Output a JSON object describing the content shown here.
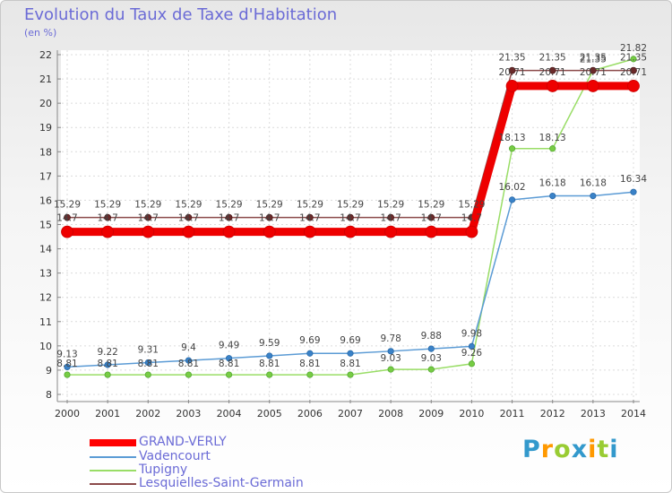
{
  "title": "Evolution du Taux de Taxe d'Habitation",
  "unit_label": "(en %)",
  "brand": "Proxiti",
  "colors": {
    "title": "#6b6bd6",
    "grand_verly": "#ff0000",
    "vadencourt": "#5b9bd5",
    "tupigny": "#99dd66",
    "lesquielles": "#8b4a4a"
  },
  "chart_data": {
    "type": "line",
    "title": "Evolution du Taux de Taxe d'Habitation",
    "ylabel": "(en %)",
    "xlabel": "",
    "x": [
      "2000",
      "2001",
      "2002",
      "2003",
      "2004",
      "2005",
      "2006",
      "2007",
      "2008",
      "2009",
      "2010",
      "2011",
      "2012",
      "2013",
      "2014"
    ],
    "ylim": [
      8,
      22
    ],
    "yticks": [
      "8",
      "9",
      "10",
      "11",
      "12",
      "13",
      "14",
      "15",
      "16",
      "17",
      "18",
      "19",
      "20",
      "21",
      "22"
    ],
    "grid": true,
    "legend_position": "bottom-left",
    "series": [
      {
        "name": "GRAND-VERLY",
        "color": "#ff0000",
        "values": [
          14.7,
          14.7,
          14.7,
          14.7,
          14.7,
          14.7,
          14.7,
          14.7,
          14.7,
          14.7,
          14.7,
          20.71,
          20.71,
          20.71,
          20.71
        ],
        "labels": [
          "14.7",
          "14.7",
          "14.7",
          "14.7",
          "14.7",
          "14.7",
          "14.7",
          "14.7",
          "14.7",
          "14.7",
          "14.7",
          "20.71",
          "20.71",
          "20.71",
          "20.71"
        ]
      },
      {
        "name": "Vadencourt",
        "color": "#5b9bd5",
        "values": [
          9.13,
          9.22,
          9.31,
          9.4,
          9.49,
          9.59,
          9.69,
          9.69,
          9.78,
          9.88,
          9.98,
          16.02,
          16.18,
          16.18,
          16.34
        ],
        "labels": [
          "9.13",
          "9.22",
          "9.31",
          "9.4",
          "9.49",
          "9.59",
          "9.69",
          "9.69",
          "9.78",
          "9.88",
          "9.98",
          "16.02",
          "16.18",
          "16.18",
          "16.34"
        ]
      },
      {
        "name": "Tupigny",
        "color": "#99dd66",
        "values": [
          8.81,
          8.81,
          8.81,
          8.81,
          8.81,
          8.81,
          8.81,
          8.81,
          9.03,
          9.03,
          9.26,
          18.13,
          18.13,
          21.35,
          21.82
        ],
        "labels": [
          "8.81",
          "8.81",
          "8.81",
          "8.81",
          "8.81",
          "8.81",
          "8.81",
          "8.81",
          "9.03",
          "9.03",
          "9.26",
          "18.13",
          "18.13",
          "21.35",
          "21.82"
        ]
      },
      {
        "name": "Lesquielles-Saint-Germain",
        "color": "#8b4a4a",
        "values": [
          15.29,
          15.29,
          15.29,
          15.29,
          15.29,
          15.29,
          15.29,
          15.29,
          15.29,
          15.29,
          15.29,
          21.35,
          21.35,
          21.35,
          21.35
        ],
        "labels": [
          "15.29",
          "15.29",
          "15.29",
          "15.29",
          "15.29",
          "15.29",
          "15.29",
          "15.29",
          "15.29",
          "15.29",
          "15.29",
          "21.35",
          "21.35",
          "21.35",
          "21.35"
        ]
      }
    ]
  }
}
